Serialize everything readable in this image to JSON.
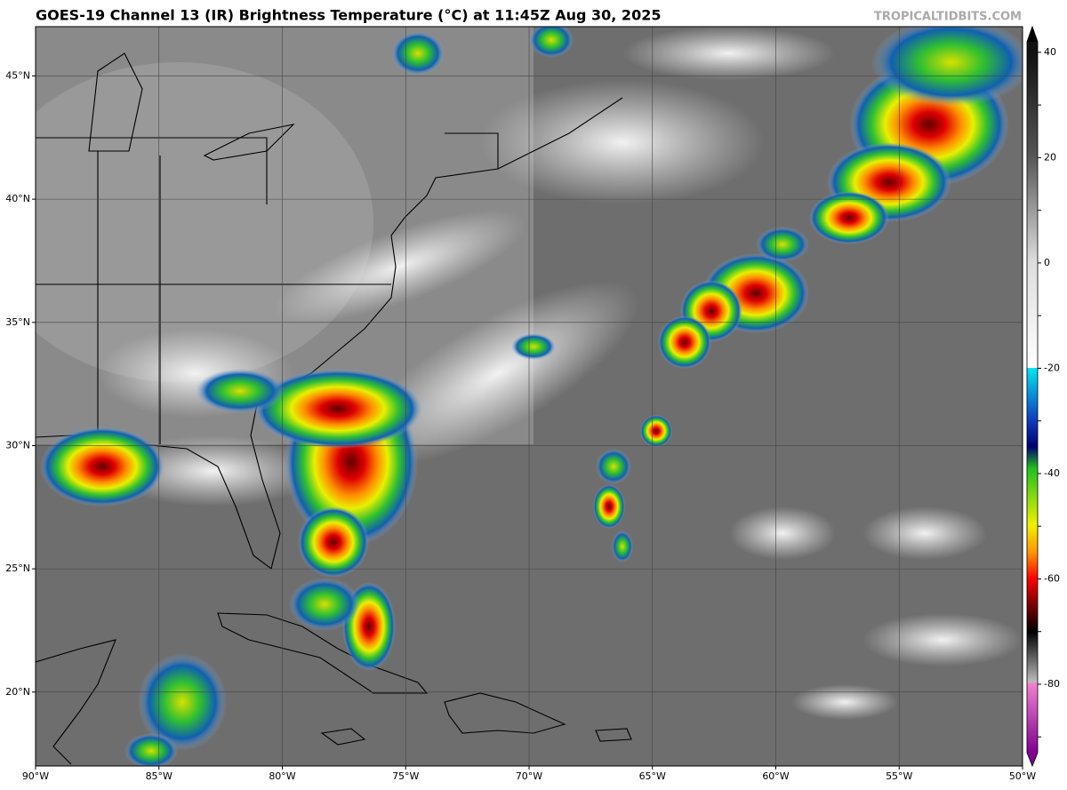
{
  "header": {
    "title": "GOES-19 Channel 13 (IR) Brightness Temperature (°C) at 11:45Z Aug 30, 2025",
    "credit": "TROPICALTIDBITS.COM"
  },
  "map": {
    "lon_range": [
      -90,
      -50
    ],
    "lat_range": [
      17,
      47
    ],
    "lon_ticks": [
      {
        "value": -90,
        "label": "90°W"
      },
      {
        "value": -85,
        "label": "85°W"
      },
      {
        "value": -80,
        "label": "80°W"
      },
      {
        "value": -75,
        "label": "75°W"
      },
      {
        "value": -70,
        "label": "70°W"
      },
      {
        "value": -65,
        "label": "65°W"
      },
      {
        "value": -60,
        "label": "60°W"
      },
      {
        "value": -55,
        "label": "55°W"
      },
      {
        "value": -50,
        "label": "50°W"
      }
    ],
    "lat_ticks": [
      {
        "value": 20,
        "label": "20°N"
      },
      {
        "value": 25,
        "label": "25°N"
      },
      {
        "value": 30,
        "label": "30°N"
      },
      {
        "value": 35,
        "label": "35°N"
      },
      {
        "value": 40,
        "label": "40°N"
      },
      {
        "value": 45,
        "label": "45°N"
      }
    ]
  },
  "colorbar": {
    "vlim": [
      -93,
      42
    ],
    "ticks": [
      40,
      30,
      20,
      10,
      0,
      -10,
      -20,
      -30,
      -40,
      -50,
      -60,
      -70,
      -80,
      -90
    ]
  }
}
